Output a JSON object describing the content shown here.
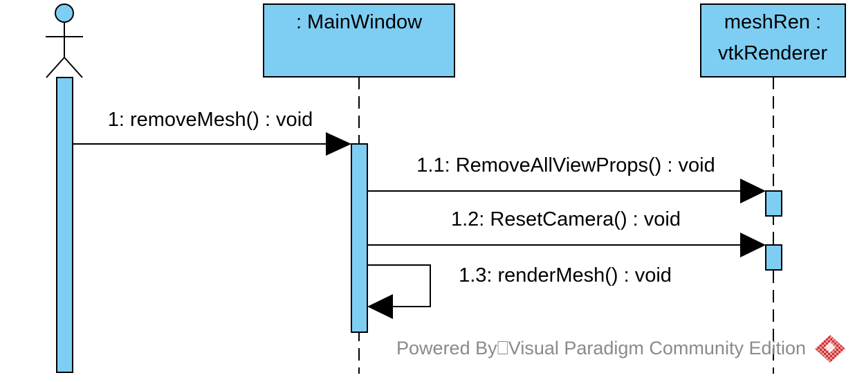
{
  "diagram_type": "UML sequence diagram",
  "colors": {
    "fill": "#7ecef4",
    "stroke": "#000000",
    "watermark_text": "#8a8a8a",
    "logo_red": "#d32f2f"
  },
  "actor": {
    "name": ""
  },
  "lifelines": [
    {
      "id": "main",
      "label_lines": [
        ": MainWindow"
      ]
    },
    {
      "id": "ren",
      "label_lines": [
        "meshRen :",
        "vtkRenderer"
      ]
    }
  ],
  "messages": [
    {
      "id": "m1",
      "label": "1: removeMesh() : void",
      "from": "actor",
      "to": "main"
    },
    {
      "id": "m11",
      "label": "1.1: RemoveAllViewProps() : void",
      "from": "main",
      "to": "ren"
    },
    {
      "id": "m12",
      "label": "1.2: ResetCamera() : void",
      "from": "main",
      "to": "ren"
    },
    {
      "id": "m13",
      "label": "1.3: renderMesh() : void",
      "from": "main",
      "to": "main",
      "self": true
    }
  ],
  "watermark": {
    "text": "Powered By⎕Visual Paradigm Community Edition",
    "logo": "visual-paradigm-logo"
  }
}
